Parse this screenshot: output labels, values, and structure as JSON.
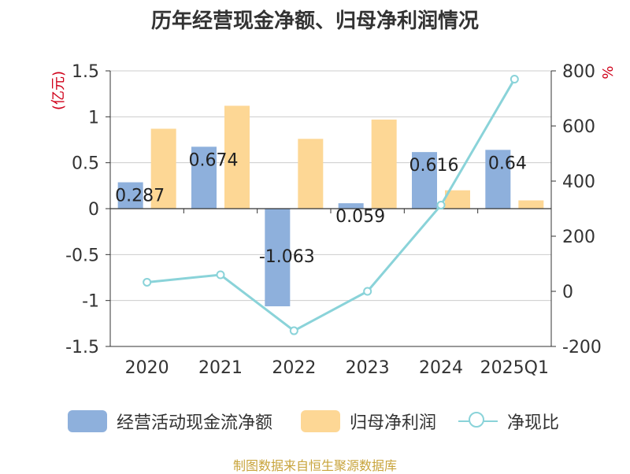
{
  "title": "历年经营现金净额、归母净利润情况",
  "source": "制图数据来自恒生聚源数据库",
  "colors": {
    "series1": "#8eb0dc",
    "series2": "#fdd795",
    "line": "#8ad3d9",
    "axis_left_title": "#d0021b",
    "axis_right_title": "#d0021b",
    "text": "#333333",
    "grid": "#cccccc",
    "source": "#c8a43c"
  },
  "chart_data": {
    "type": "bar",
    "categories": [
      "2020",
      "2021",
      "2022",
      "2023",
      "2024",
      "2025Q1"
    ],
    "series": [
      {
        "name": "经营活动现金流净额",
        "type": "bar",
        "axis": "left",
        "values": [
          0.287,
          0.674,
          -1.063,
          0.059,
          0.616,
          0.64
        ],
        "labels": [
          "0.287",
          "0.674",
          "-1.063",
          "0.059",
          "0.616",
          "0.64"
        ]
      },
      {
        "name": "归母净利润",
        "type": "bar",
        "axis": "left",
        "values": [
          0.87,
          1.12,
          0.76,
          0.97,
          0.2,
          0.09
        ]
      },
      {
        "name": "净现比",
        "type": "line",
        "axis": "right",
        "values": [
          33,
          60,
          -143,
          0,
          313,
          770
        ]
      }
    ],
    "y_left": {
      "label": "(亿元)",
      "ylim": [
        -1.5,
        1.5
      ],
      "ticks": [
        1.5,
        1,
        0.5,
        0,
        -0.5,
        -1,
        -1.5
      ],
      "tick_labels": [
        "1.5",
        "1",
        "0.5",
        "0",
        "-0.5",
        "-1",
        "-1.5"
      ]
    },
    "y_right": {
      "label": "%",
      "ylim": [
        -200,
        800
      ],
      "ticks": [
        800,
        600,
        400,
        200,
        0,
        -200
      ],
      "tick_labels": [
        "800",
        "600",
        "400",
        "200",
        "0",
        "-200"
      ]
    },
    "grid": true,
    "legend_position": "bottom"
  }
}
